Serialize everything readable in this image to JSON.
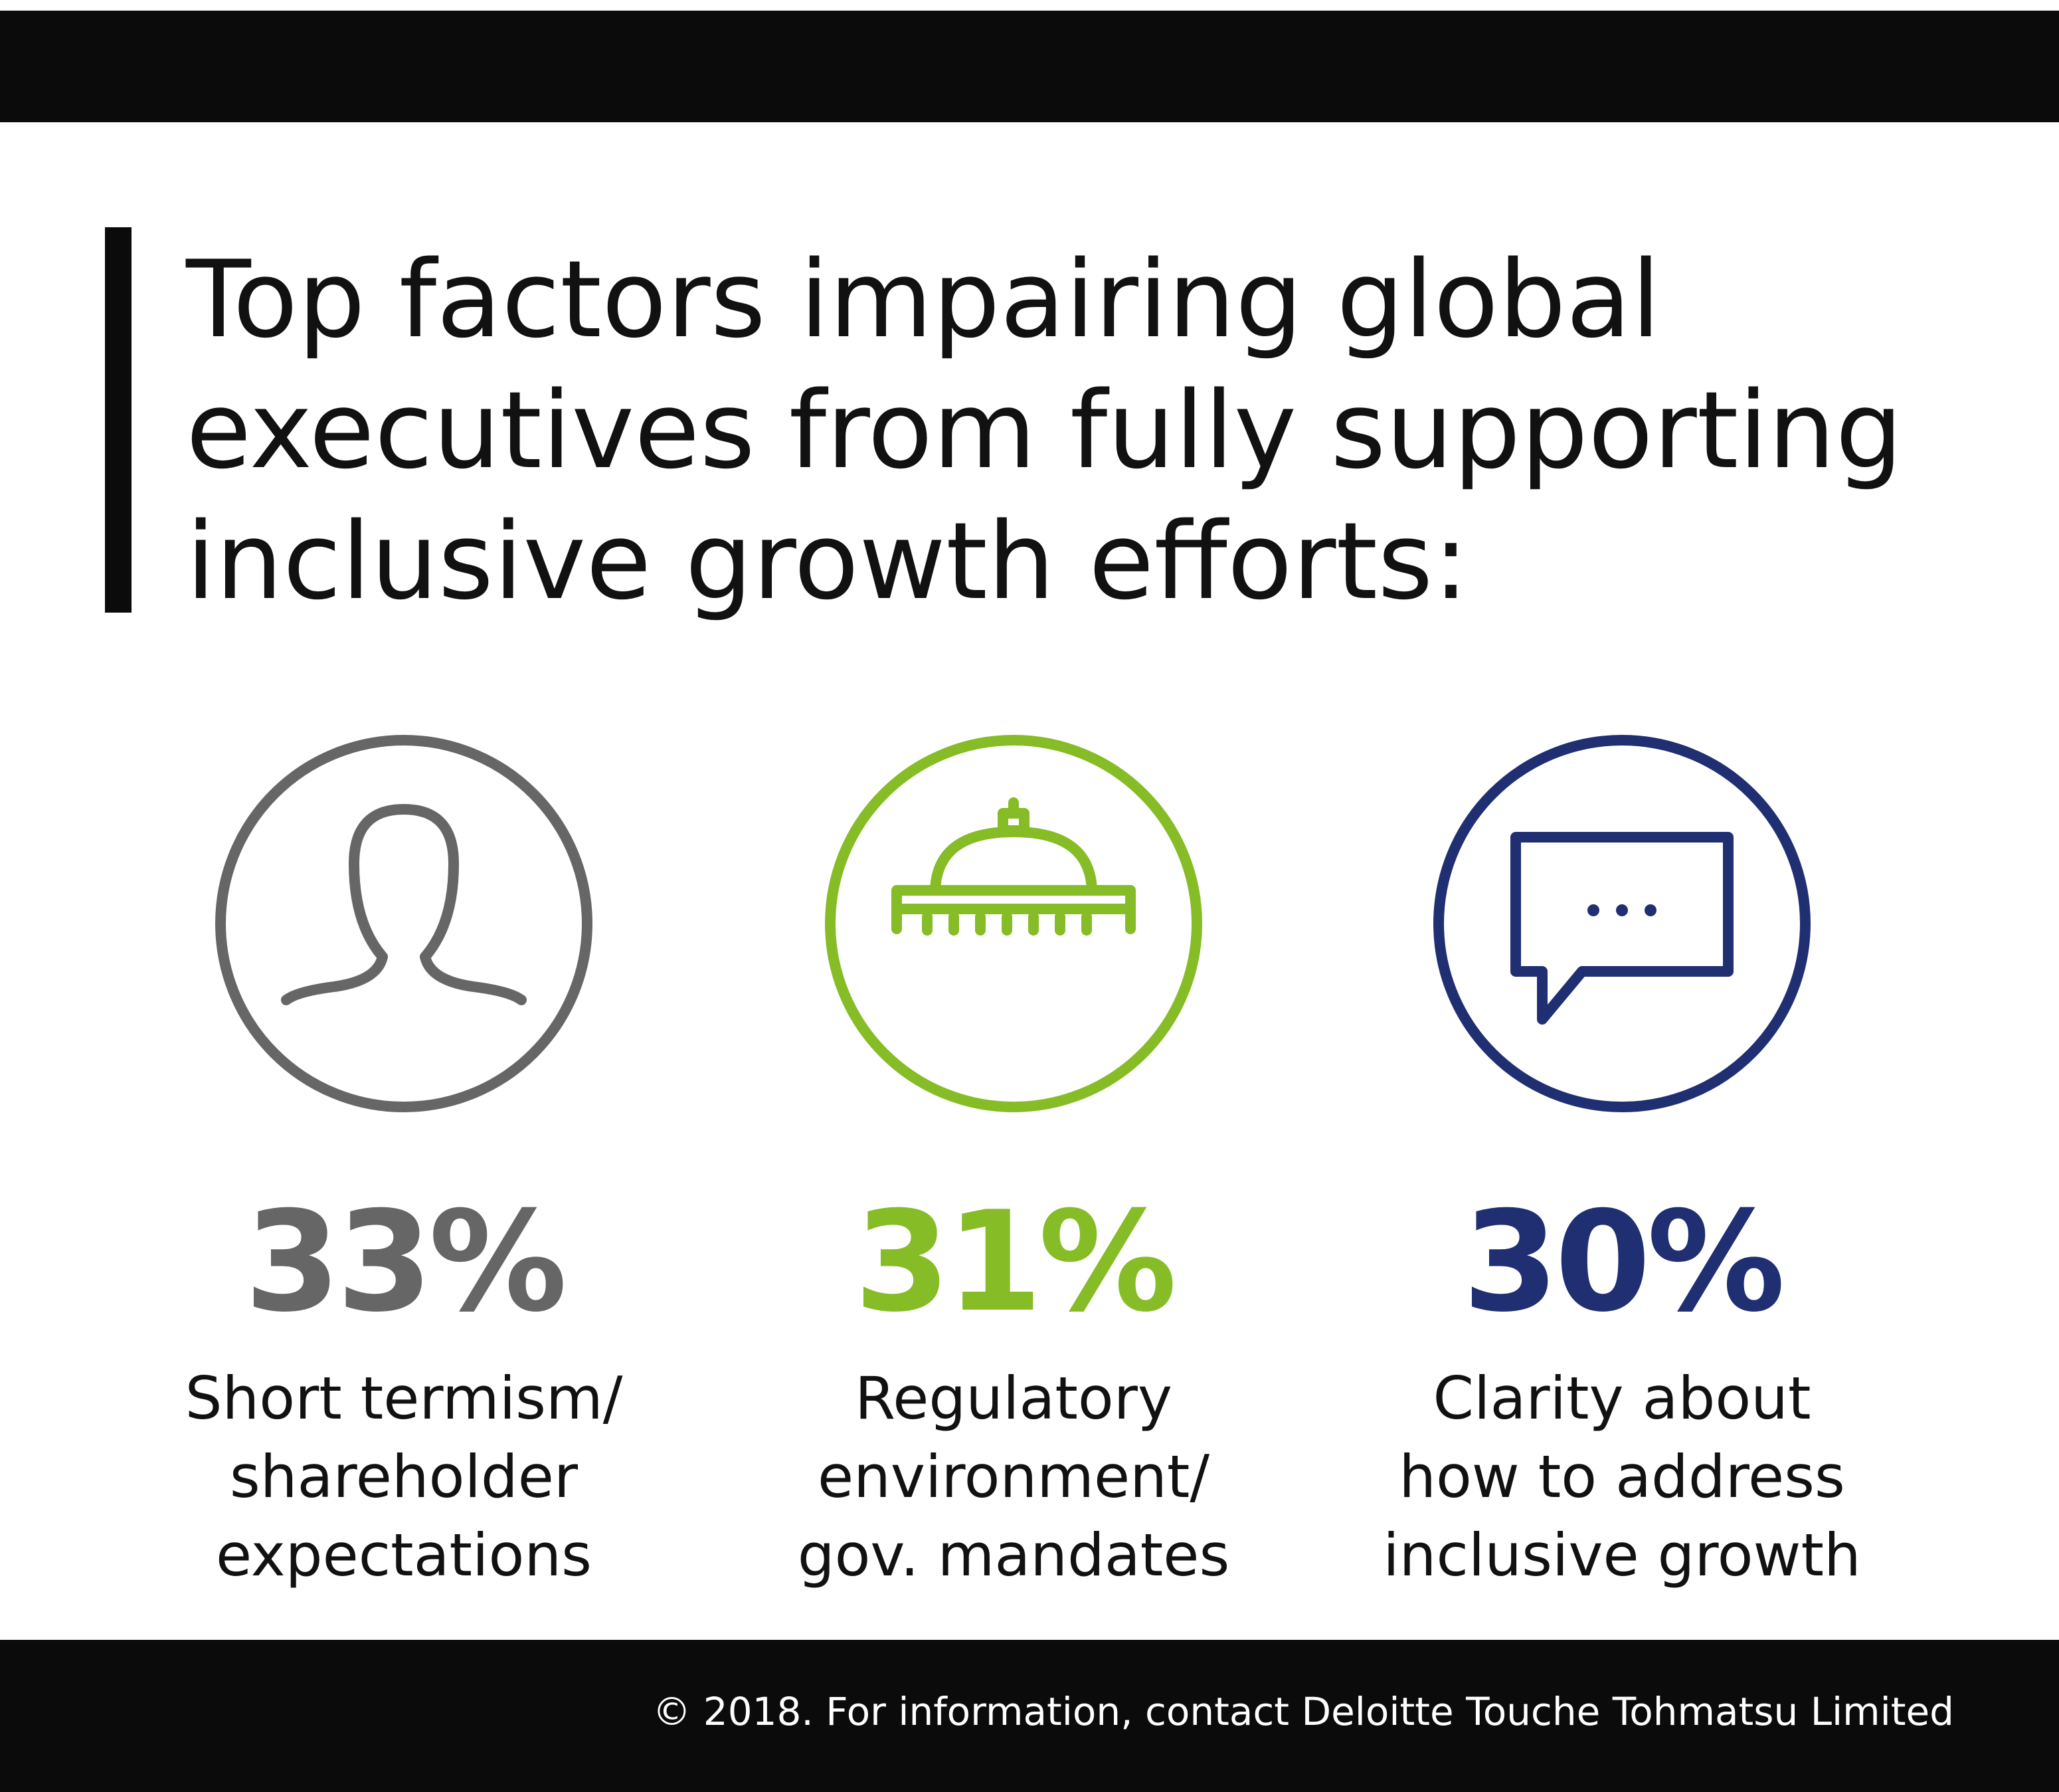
{
  "title": {
    "lines": [
      "Top factors impairing global",
      "executives from fully supporting",
      "inclusive growth efforts:"
    ]
  },
  "stats": [
    {
      "icon": "person-icon",
      "color": "#666666",
      "percent": "33%",
      "description": [
        "Short termism/",
        "shareholder",
        "expectations"
      ]
    },
    {
      "icon": "capitol-dome-icon",
      "color": "#86bc25",
      "percent": "31%",
      "description": [
        "Regulatory",
        "environment/",
        "gov. mandates"
      ]
    },
    {
      "icon": "speech-bubble-icon",
      "color": "#1f2f72",
      "percent": "30%",
      "description": [
        "Clarity about",
        "how to address",
        "inclusive growth"
      ]
    }
  ],
  "footer": {
    "copyright": "© 2018. For information, contact Deloitte Touche Tohmatsu Limited"
  }
}
